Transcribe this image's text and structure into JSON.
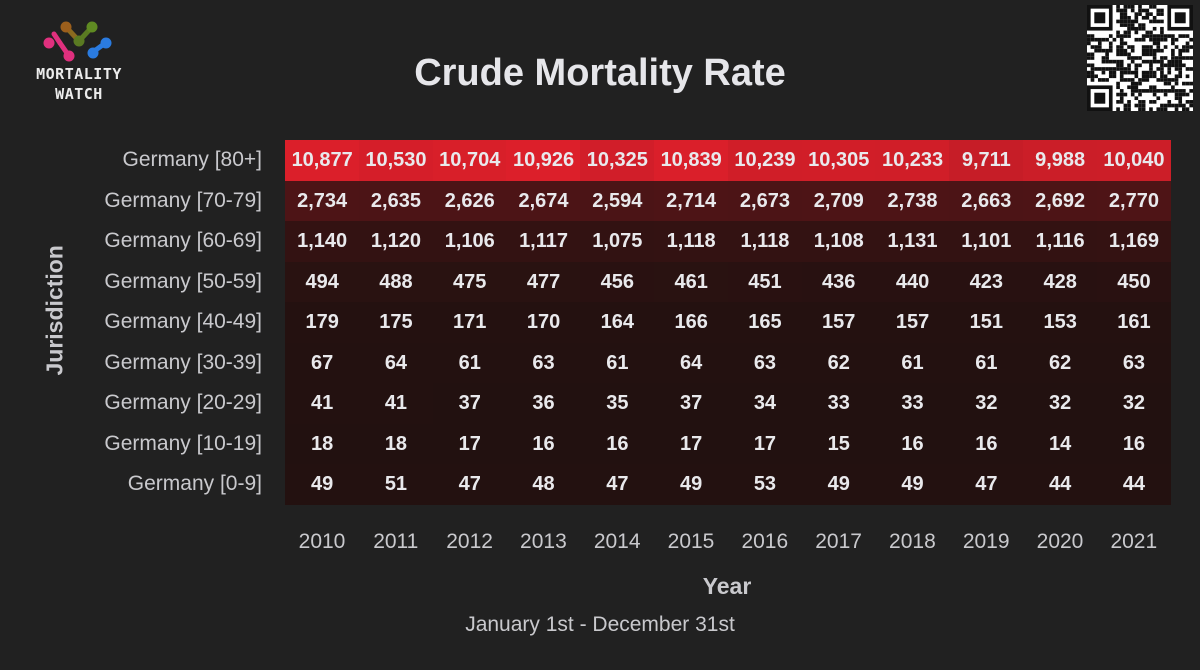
{
  "header": {
    "title": "Crude Mortality Rate",
    "logo_text": "MORTALITY WATCH"
  },
  "chart_data": {
    "type": "heatmap",
    "title": "Crude Mortality Rate",
    "subtitle": "January 1st - December 31st",
    "xlabel": "Year",
    "ylabel": "Jurisdiction",
    "x": [
      "2010",
      "2011",
      "2012",
      "2013",
      "2014",
      "2015",
      "2016",
      "2017",
      "2018",
      "2019",
      "2020",
      "2021"
    ],
    "rows": [
      {
        "name": "Germany [80+]",
        "values": [
          10877,
          10530,
          10704,
          10926,
          10325,
          10839,
          10239,
          10305,
          10233,
          9711,
          9988,
          10040
        ]
      },
      {
        "name": "Germany [70-79]",
        "values": [
          2734,
          2635,
          2626,
          2674,
          2594,
          2714,
          2673,
          2709,
          2738,
          2663,
          2692,
          2770
        ]
      },
      {
        "name": "Germany [60-69]",
        "values": [
          1140,
          1120,
          1106,
          1117,
          1075,
          1118,
          1118,
          1108,
          1131,
          1101,
          1116,
          1169
        ]
      },
      {
        "name": "Germany [50-59]",
        "values": [
          494,
          488,
          475,
          477,
          456,
          461,
          451,
          436,
          440,
          423,
          428,
          450
        ]
      },
      {
        "name": "Germany [40-49]",
        "values": [
          179,
          175,
          171,
          170,
          164,
          166,
          165,
          157,
          157,
          151,
          153,
          161
        ]
      },
      {
        "name": "Germany [30-39]",
        "values": [
          67,
          64,
          61,
          63,
          61,
          64,
          63,
          62,
          61,
          61,
          62,
          63
        ]
      },
      {
        "name": "Germany [20-29]",
        "values": [
          41,
          41,
          37,
          36,
          35,
          37,
          34,
          33,
          33,
          32,
          32,
          32
        ]
      },
      {
        "name": "Germany [10-19]",
        "values": [
          18,
          18,
          17,
          16,
          16,
          17,
          17,
          15,
          16,
          16,
          14,
          16
        ]
      },
      {
        "name": "Germany [0-9]",
        "values": [
          49,
          51,
          47,
          48,
          47,
          49,
          53,
          49,
          49,
          47,
          44,
          44
        ]
      }
    ],
    "color_scale": {
      "low": "#221110",
      "high": "#dc1f2a"
    }
  }
}
